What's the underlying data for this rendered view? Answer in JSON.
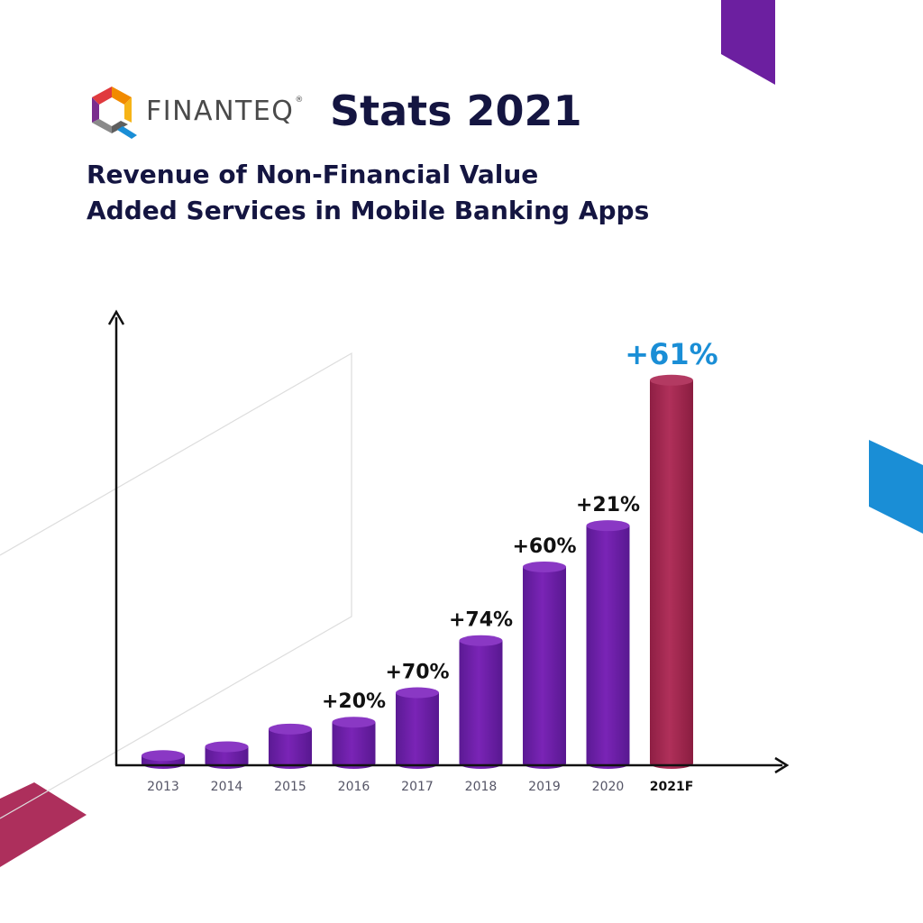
{
  "header": {
    "brand": "FINANTEQ",
    "brand_mark": "®",
    "title": "Stats 2021"
  },
  "subtitle": {
    "line1": "Revenue of Non-Financial Value",
    "line2": "Added Services in Mobile Banking Apps"
  },
  "colors": {
    "bar": "#6a1fa6",
    "bar_forecast": "#a8234d",
    "highlight": "#1a8ed6",
    "title": "#141541"
  },
  "chart_data": {
    "type": "bar",
    "title": "Revenue of Non-Financial Value Added Services in Mobile Banking Apps",
    "xlabel": "",
    "ylabel": "",
    "categories": [
      "2013",
      "2014",
      "2015",
      "2016",
      "2017",
      "2018",
      "2019",
      "2020",
      "2021F"
    ],
    "values": [
      0.8,
      1.7,
      3.5,
      4.2,
      7.2,
      12.5,
      20.0,
      24.2,
      39.0
    ],
    "growth_labels": [
      "",
      "",
      "",
      "+20%",
      "+70%",
      "+74%",
      "+60%",
      "+21%",
      "+61%"
    ],
    "forecast_index": 8,
    "ylim": [
      0,
      41
    ],
    "note": "Values are relative bar heights estimated from the graphic (no y-axis scale shown)."
  }
}
